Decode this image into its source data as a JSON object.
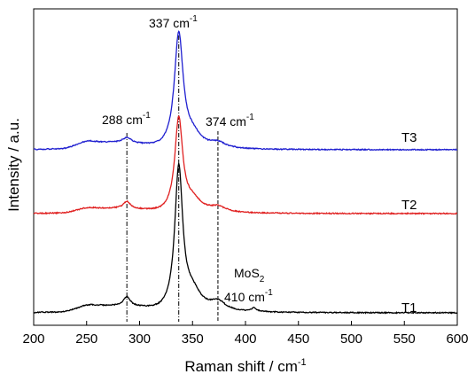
{
  "chart_data": {
    "type": "line",
    "xlabel": "Raman shift / cm",
    "xlabel_sup": "-1",
    "ylabel": "Intensity / a.u.",
    "xlim": [
      200,
      600
    ],
    "x_ticks": [
      200,
      250,
      300,
      350,
      400,
      450,
      500,
      550,
      600
    ],
    "y_ticks_shown": false,
    "grid": false,
    "legend": "none",
    "series": [
      {
        "name": "T1",
        "color": "#000000",
        "offset": 0,
        "peaks": [
          {
            "x": 250,
            "h": 4,
            "w": 12
          },
          {
            "x": 288,
            "h": 10,
            "w": 4
          },
          {
            "x": 337,
            "h": 160,
            "w": 4.5
          },
          {
            "x": 350,
            "h": 20,
            "w": 10
          },
          {
            "x": 374,
            "h": 10,
            "w": 9
          },
          {
            "x": 408,
            "h": 4,
            "w": 3
          }
        ],
        "baseline": 0,
        "shoulder": {
          "from": 230,
          "to": 320,
          "h": 8
        }
      },
      {
        "name": "T2",
        "color": "#e02020",
        "offset": 112,
        "peaks": [
          {
            "x": 250,
            "h": 3,
            "w": 12
          },
          {
            "x": 288,
            "h": 8,
            "w": 4
          },
          {
            "x": 337,
            "h": 105,
            "w": 4.5
          },
          {
            "x": 350,
            "h": 13,
            "w": 10
          },
          {
            "x": 374,
            "h": 6,
            "w": 9
          }
        ],
        "baseline": 0,
        "shoulder": {
          "from": 230,
          "to": 320,
          "h": 6
        }
      },
      {
        "name": "T3",
        "color": "#1f1fd0",
        "offset": 184,
        "peaks": [
          {
            "x": 250,
            "h": 5,
            "w": 12
          },
          {
            "x": 288,
            "h": 6,
            "w": 5
          },
          {
            "x": 337,
            "h": 128,
            "w": 5
          },
          {
            "x": 350,
            "h": 14,
            "w": 10
          },
          {
            "x": 374,
            "h": 6,
            "w": 9
          }
        ],
        "baseline": 0,
        "shoulder": {
          "from": 230,
          "to": 320,
          "h": 8
        }
      }
    ],
    "annotations": {
      "peak_337": {
        "text": "337 cm",
        "sup": "-1"
      },
      "peak_288": {
        "text": "288 cm",
        "sup": "-1"
      },
      "peak_374": {
        "text": "374 cm",
        "sup": "-1"
      },
      "mos2": {
        "text": "MoS",
        "sub": "2"
      },
      "peak_410": {
        "text": "410 cm",
        "sup": "-1"
      }
    },
    "marker_lines_x": [
      288,
      337,
      374
    ]
  }
}
